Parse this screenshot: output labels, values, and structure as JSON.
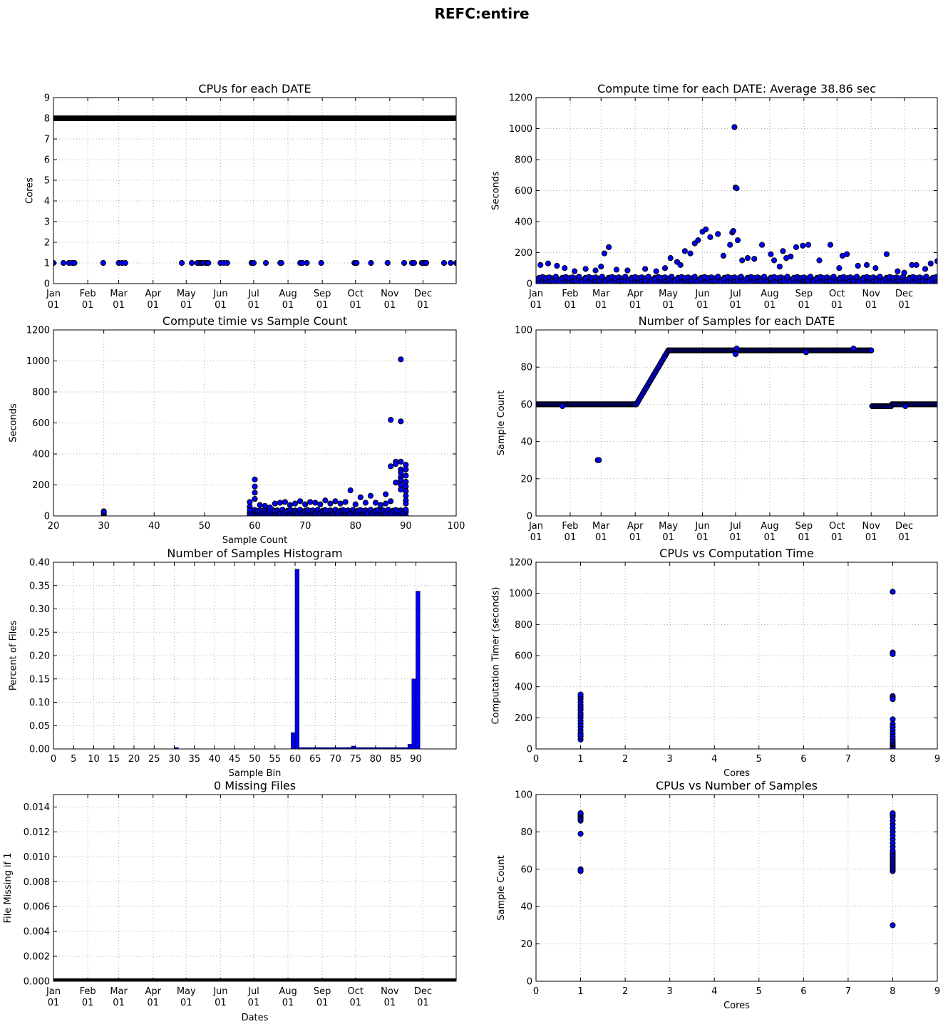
{
  "figure": {
    "title": "REFC:entire"
  },
  "date_ticks": {
    "month_names": [
      "Jan",
      "Feb",
      "Mar",
      "Apr",
      "May",
      "Jun",
      "Jul",
      "Aug",
      "Sep",
      "Oct",
      "Nov",
      "Dec"
    ],
    "day_label": "01"
  },
  "chart_data": [
    {
      "id": "cpus-by-date",
      "type": "scatter",
      "title": "CPUs for each DATE",
      "xlabel": "",
      "ylabel": "Cores",
      "x_axis": "date",
      "xlim": [
        "Jan 01",
        "Dec 31"
      ],
      "ylim": [
        0,
        9
      ],
      "yticks": [
        "0",
        "1",
        "2",
        "3",
        "4",
        "5",
        "6",
        "7",
        "8",
        "9"
      ],
      "grid": true,
      "series": [
        {
          "style": "band",
          "y": 8,
          "x_start": "Jan 01",
          "x_end": "Dec 31"
        },
        {
          "style": "points",
          "y": 1,
          "x": [
            "Jan 01",
            "Jan 10",
            "Jan 15",
            "Jan 18",
            "Jan 20",
            "Feb 15",
            "Mar 01",
            "Mar 04",
            "Mar 07",
            "Apr 27",
            "May 06",
            "May 11",
            "May 13",
            "May 14",
            "May 15",
            "May 16",
            "May 19",
            "May 20",
            "May 21",
            "Jun 01",
            "Jun 04",
            "Jun 07",
            "Jun 29",
            "Jun 30",
            "Jul 01",
            "Jul 12",
            "Jul 25",
            "Jul 26",
            "Aug 12",
            "Aug 14",
            "Aug 18",
            "Aug 31",
            "Sep 30",
            "Oct 01",
            "Oct 02",
            "Oct 15",
            "Oct 30",
            "Nov 14",
            "Nov 21",
            "Nov 23",
            "Nov 30",
            "Dec 01",
            "Dec 03",
            "Dec 04",
            "Dec 20",
            "Dec 26",
            "Dec 31"
          ]
        }
      ]
    },
    {
      "id": "compute-by-date",
      "type": "scatter",
      "title": "Compute time for each DATE: Average 38.86 sec",
      "xlabel": "",
      "ylabel": "Seconds",
      "x_axis": "date",
      "xlim": [
        "Jan 01",
        "Dec 31"
      ],
      "ylim": [
        0,
        1200
      ],
      "yticks": [
        "0",
        "200",
        "400",
        "600",
        "800",
        "1000",
        "1200"
      ],
      "grid": true,
      "series": [
        {
          "style": "dense",
          "x_start": "Jan 01",
          "x_end": "Dec 31",
          "y_range": [
            0,
            45
          ]
        },
        {
          "style": "points",
          "x": [
            "Jan 05",
            "Jan 12",
            "Jan 20",
            "Jan 27",
            "Feb 05",
            "Feb 15",
            "Feb 24",
            "Mar 01",
            "Mar 04",
            "Mar 08",
            "Mar 15",
            "Mar 25",
            "Apr 10",
            "Apr 20",
            "Apr 28",
            "May 03",
            "May 09",
            "May 12",
            "May 16",
            "May 21",
            "May 25",
            "May 28",
            "Jun 01",
            "Jun 04",
            "Jun 08",
            "Jun 15",
            "Jun 20",
            "Jun 26",
            "Jun 28",
            "Jun 29",
            "Jun 30",
            "Jul 01",
            "Jul 02",
            "Jul 03",
            "Jul 07",
            "Jul 12",
            "Jul 18",
            "Jul 25",
            "Aug 02",
            "Aug 05",
            "Aug 10",
            "Aug 13",
            "Aug 16",
            "Aug 20",
            "Aug 25",
            "Aug 31",
            "Sep 05",
            "Sep 15",
            "Sep 25",
            "Oct 03",
            "Oct 06",
            "Oct 10",
            "Oct 20",
            "Oct 28",
            "Nov 05",
            "Nov 15",
            "Nov 25",
            "Dec 01",
            "Dec 08",
            "Dec 12",
            "Dec 20",
            "Dec 25",
            "Dec 31"
          ],
          "y": [
            120,
            130,
            115,
            100,
            80,
            95,
            85,
            110,
            195,
            235,
            90,
            85,
            95,
            80,
            100,
            165,
            140,
            120,
            210,
            195,
            260,
            280,
            335,
            350,
            300,
            320,
            180,
            250,
            330,
            340,
            1010,
            620,
            615,
            280,
            150,
            165,
            160,
            250,
            190,
            150,
            110,
            210,
            165,
            175,
            235,
            245,
            250,
            150,
            250,
            100,
            180,
            190,
            115,
            120,
            100,
            190,
            80,
            70,
            120,
            120,
            95,
            130,
            145
          ]
        }
      ]
    },
    {
      "id": "compute-vs-samples",
      "type": "scatter",
      "title": "Compute timie vs Sample Count",
      "xlabel": "Sample Count",
      "ylabel": "Seconds",
      "x_axis": "numeric",
      "xlim": [
        20,
        100
      ],
      "ylim": [
        0,
        1200
      ],
      "xticks": [
        "20",
        "30",
        "40",
        "50",
        "60",
        "70",
        "80",
        "90",
        "100"
      ],
      "yticks": [
        "0",
        "200",
        "400",
        "600",
        "800",
        "1000",
        "1200"
      ],
      "grid": true,
      "series": [
        {
          "style": "dense",
          "x_range": [
            59,
            90
          ],
          "y_range": [
            0,
            40
          ]
        },
        {
          "style": "points",
          "x": [
            30,
            30,
            30,
            30,
            59,
            59,
            59,
            60,
            60,
            60,
            60,
            61,
            62,
            63,
            64,
            65,
            66,
            67,
            68,
            69,
            70,
            71,
            72,
            73,
            74,
            75,
            76,
            77,
            78,
            79,
            80,
            81,
            82,
            83,
            84,
            85,
            86,
            86,
            87,
            87,
            87,
            88,
            88,
            88,
            89,
            89,
            89,
            89,
            89,
            89,
            89,
            89,
            89,
            90,
            90,
            90,
            90,
            90,
            90,
            90,
            90,
            90
          ],
          "y": [
            10,
            20,
            30,
            25,
            60,
            90,
            40,
            110,
            150,
            190,
            235,
            70,
            65,
            55,
            80,
            85,
            90,
            70,
            80,
            95,
            75,
            90,
            85,
            75,
            100,
            80,
            95,
            80,
            90,
            165,
            75,
            120,
            85,
            130,
            85,
            70,
            140,
            80,
            620,
            320,
            95,
            350,
            335,
            215,
            1010,
            610,
            350,
            300,
            280,
            250,
            230,
            200,
            170,
            330,
            300,
            260,
            220,
            190,
            160,
            130,
            100,
            80
          ]
        }
      ]
    },
    {
      "id": "samples-by-date",
      "type": "scatter",
      "title": "Number of Samples for each DATE",
      "xlabel": "",
      "ylabel": "Sample Count",
      "x_axis": "date",
      "xlim": [
        "Jan 01",
        "Dec 31"
      ],
      "ylim": [
        0,
        100
      ],
      "yticks": [
        "0",
        "20",
        "40",
        "60",
        "80",
        "100"
      ],
      "grid": true,
      "series": [
        {
          "style": "line",
          "x": [
            "Jan 01",
            "Apr 01",
            "Apr 02",
            "Apr 28",
            "May 01",
            "Nov 01",
            "Nov 02",
            "Nov 19",
            "Nov 20",
            "Dec 31"
          ],
          "y": [
            60,
            60,
            60,
            86,
            89,
            89,
            59,
            59,
            60,
            60
          ]
        },
        {
          "style": "points",
          "x": [
            "Jan 25",
            "Feb 26",
            "Feb 27",
            "Jul 01",
            "Jul 02",
            "Sep 03",
            "Oct 16",
            "Nov 01",
            "Dec 02"
          ],
          "y": [
            59,
            30,
            30,
            87,
            90,
            88,
            90,
            89,
            59
          ]
        }
      ]
    },
    {
      "id": "samples-histogram",
      "type": "bar",
      "title": "Number of Samples Histogram",
      "xlabel": "Sample Bin",
      "ylabel": "Percent of Files",
      "x_axis": "numeric",
      "xlim": [
        0,
        100
      ],
      "ylim": [
        0,
        0.4
      ],
      "xticks": [
        "0",
        "5",
        "10",
        "15",
        "20",
        "25",
        "30",
        "35",
        "40",
        "45",
        "50",
        "55",
        "60",
        "65",
        "70",
        "75",
        "80",
        "85",
        "90"
      ],
      "yticks": [
        "0.00",
        "0.05",
        "0.10",
        "0.15",
        "0.20",
        "0.25",
        "0.30",
        "0.35",
        "0.40"
      ],
      "grid": true,
      "bin_width": 1,
      "bin_starts": [
        30,
        59,
        60,
        61,
        62,
        63,
        64,
        65,
        66,
        67,
        68,
        69,
        70,
        71,
        72,
        73,
        74,
        75,
        76,
        77,
        78,
        79,
        80,
        81,
        82,
        83,
        84,
        85,
        86,
        87,
        88,
        89,
        90
      ],
      "values": [
        0.003,
        0.035,
        0.385,
        0.003,
        0.003,
        0.003,
        0.003,
        0.003,
        0.003,
        0.003,
        0.003,
        0.003,
        0.003,
        0.003,
        0.003,
        0.003,
        0.006,
        0.003,
        0.003,
        0.003,
        0.003,
        0.003,
        0.003,
        0.003,
        0.003,
        0.003,
        0.003,
        0.003,
        0.003,
        0.003,
        0.01,
        0.15,
        0.338
      ]
    },
    {
      "id": "cpus-vs-compute",
      "type": "scatter",
      "title": "CPUs vs Computation Time",
      "xlabel": "Cores",
      "ylabel": "Computation Timer (seconds)",
      "x_axis": "numeric",
      "xlim": [
        0,
        9
      ],
      "ylim": [
        0,
        1200
      ],
      "xticks": [
        "0",
        "1",
        "2",
        "3",
        "4",
        "5",
        "6",
        "7",
        "8",
        "9"
      ],
      "yticks": [
        "0",
        "200",
        "400",
        "600",
        "800",
        "1000",
        "1200"
      ],
      "grid": true,
      "series": [
        {
          "style": "points",
          "x": [
            1,
            1,
            1,
            1,
            1,
            1,
            1,
            1,
            1,
            1,
            1,
            1,
            1,
            1,
            1,
            1,
            1,
            1,
            8,
            8,
            8,
            8,
            8,
            8,
            8,
            8,
            8,
            8,
            8,
            8,
            8,
            8,
            8,
            8,
            8,
            8,
            8
          ],
          "y": [
            60,
            80,
            100,
            120,
            140,
            160,
            180,
            200,
            215,
            230,
            250,
            265,
            280,
            300,
            320,
            335,
            350,
            90,
            1010,
            620,
            610,
            340,
            330,
            320,
            190,
            160,
            140,
            120,
            100,
            80,
            60,
            45,
            30,
            20,
            10,
            5,
            0
          ]
        }
      ]
    },
    {
      "id": "missing-files",
      "type": "scatter",
      "title": "0 Missing Files",
      "xlabel": "Dates",
      "ylabel": "File Missing if 1",
      "x_axis": "date",
      "xlim": [
        "Jan 01",
        "Dec 31"
      ],
      "ylim": [
        0,
        0.015
      ],
      "yticks": [
        "0.000",
        "0.002",
        "0.004",
        "0.006",
        "0.008",
        "0.010",
        "0.012",
        "0.014"
      ],
      "grid": true,
      "series": [
        {
          "style": "band",
          "y": 0,
          "x_start": "Jan 01",
          "x_end": "Dec 31"
        }
      ]
    },
    {
      "id": "cpus-vs-samples",
      "type": "scatter",
      "title": "CPUs vs Number of Samples",
      "xlabel": "Cores",
      "ylabel": "Sample Count",
      "x_axis": "numeric",
      "xlim": [
        0,
        9
      ],
      "ylim": [
        0,
        100
      ],
      "xticks": [
        "0",
        "1",
        "2",
        "3",
        "4",
        "5",
        "6",
        "7",
        "8",
        "9"
      ],
      "yticks": [
        "0",
        "20",
        "40",
        "60",
        "80",
        "100"
      ],
      "grid": true,
      "series": [
        {
          "style": "points",
          "x": [
            1,
            1,
            1,
            1,
            1,
            1,
            1,
            1,
            1,
            1,
            8,
            8,
            8,
            8,
            8,
            8,
            8,
            8,
            8,
            8,
            8,
            8,
            8,
            8,
            8,
            8,
            8,
            8,
            8,
            8,
            8,
            8,
            8,
            8
          ],
          "y": [
            60,
            59,
            79,
            86,
            87,
            88,
            89,
            89.5,
            90,
            90,
            30,
            59,
            60,
            61,
            62,
            63,
            64,
            65,
            66,
            67,
            68,
            69,
            70,
            72,
            74,
            76,
            78,
            80,
            82,
            84,
            86,
            88,
            89,
            90
          ]
        }
      ]
    }
  ]
}
